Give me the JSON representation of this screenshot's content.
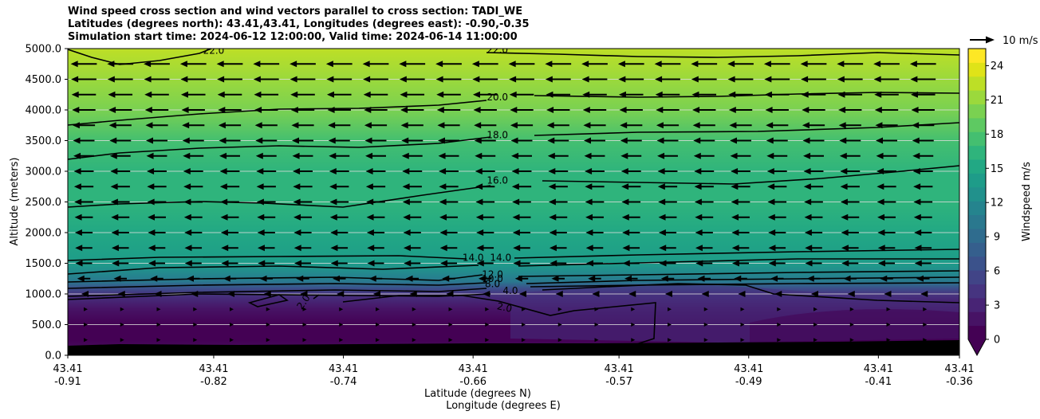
{
  "title": {
    "line1": "Wind speed cross section and wind vectors parallel to cross section: TADI_WE",
    "line2": "Latitudes (degrees north): 43.41,43.41, Longitudes (degrees east): -0.90,-0.35",
    "line3": "Simulation start time: 2024-06-12 12:00:00, Valid time: 2024-06-14 11:00:00"
  },
  "quiver_key_label": "10 m/s",
  "chart_data": {
    "type": "filled-contour cross section with wind vectors",
    "ylabel": "Altitude (meters)",
    "xlabel_lat": "Latitude (degrees N)",
    "xlabel_lon": "Longitude (degrees E)",
    "ylim": [
      0,
      5000
    ],
    "y_ticks": [
      "0.0",
      "500.0",
      "1000.0",
      "1500.0",
      "2000.0",
      "2500.0",
      "3000.0",
      "3500.0",
      "4000.0",
      "4500.0",
      "5000.0"
    ],
    "x_ticks": [
      {
        "lat": "43.41",
        "lon": "-0.91"
      },
      {
        "lat": "43.41",
        "lon": "-0.82"
      },
      {
        "lat": "43.41",
        "lon": "-0.74"
      },
      {
        "lat": "43.41",
        "lon": "-0.66"
      },
      {
        "lat": "43.41",
        "lon": "-0.57"
      },
      {
        "lat": "43.41",
        "lon": "-0.49"
      },
      {
        "lat": "43.41",
        "lon": "-0.41"
      },
      {
        "lat": "43.41",
        "lon": "-0.36"
      }
    ],
    "lon_range": [
      -0.91,
      -0.36
    ],
    "colorbar": {
      "label": "Windspeed m/s",
      "ticks": [
        "0",
        "3",
        "6",
        "9",
        "12",
        "15",
        "18",
        "21",
        "24"
      ],
      "range": [
        0,
        25.5
      ],
      "colors": [
        "#440154",
        "#471365",
        "#482475",
        "#463480",
        "#414487",
        "#3b528b",
        "#355f8d",
        "#2f6c8e",
        "#2a788e",
        "#25848e",
        "#21918c",
        "#1e9c89",
        "#22a884",
        "#2fb47c",
        "#44bf70",
        "#5ec962",
        "#7ad151",
        "#9bd93c",
        "#bddf26",
        "#dfe318",
        "#fde725"
      ]
    },
    "speed_profile": [
      {
        "alt": 0,
        "speed": 2.0
      },
      {
        "alt": 250,
        "speed": 1.2
      },
      {
        "alt": 500,
        "speed": 1.0
      },
      {
        "alt": 750,
        "speed": 1.5
      },
      {
        "alt": 1000,
        "speed": 4.0
      },
      {
        "alt": 1100,
        "speed": 7.0
      },
      {
        "alt": 1200,
        "speed": 10.0
      },
      {
        "alt": 1300,
        "speed": 12.0
      },
      {
        "alt": 1500,
        "speed": 14.0
      },
      {
        "alt": 2000,
        "speed": 14.8
      },
      {
        "alt": 2500,
        "speed": 15.8
      },
      {
        "alt": 3000,
        "speed": 16.6
      },
      {
        "alt": 3500,
        "speed": 18.0
      },
      {
        "alt": 4000,
        "speed": 19.6
      },
      {
        "alt": 4500,
        "speed": 21.2
      },
      {
        "alt": 5000,
        "speed": 22.5
      }
    ],
    "contour_labels": [
      {
        "text": "22.0",
        "alt": 4970,
        "lon": -0.82
      },
      {
        "text": "22.0",
        "alt": 4980,
        "lon": -0.645
      },
      {
        "text": "20.0",
        "alt": 4210,
        "lon": -0.645
      },
      {
        "text": "18.0",
        "alt": 3590,
        "lon": -0.645
      },
      {
        "text": "16.0",
        "alt": 2850,
        "lon": -0.645
      },
      {
        "text": "14.0",
        "alt": 1590,
        "lon": -0.66
      },
      {
        "text": "14.0",
        "alt": 1590,
        "lon": -0.643
      },
      {
        "text": "12.0",
        "alt": 1320,
        "lon": -0.648
      },
      {
        "text": "10.0",
        "alt": 1250,
        "lon": -0.648
      },
      {
        "text": "8.0",
        "alt": 1160,
        "lon": -0.648
      },
      {
        "text": "4.0",
        "alt": 1050,
        "lon": -0.637
      },
      {
        "text": "2.0",
        "alt": 890,
        "lon": -0.763
      },
      {
        "text": "2.0",
        "alt": 780,
        "lon": -0.641
      }
    ]
  }
}
